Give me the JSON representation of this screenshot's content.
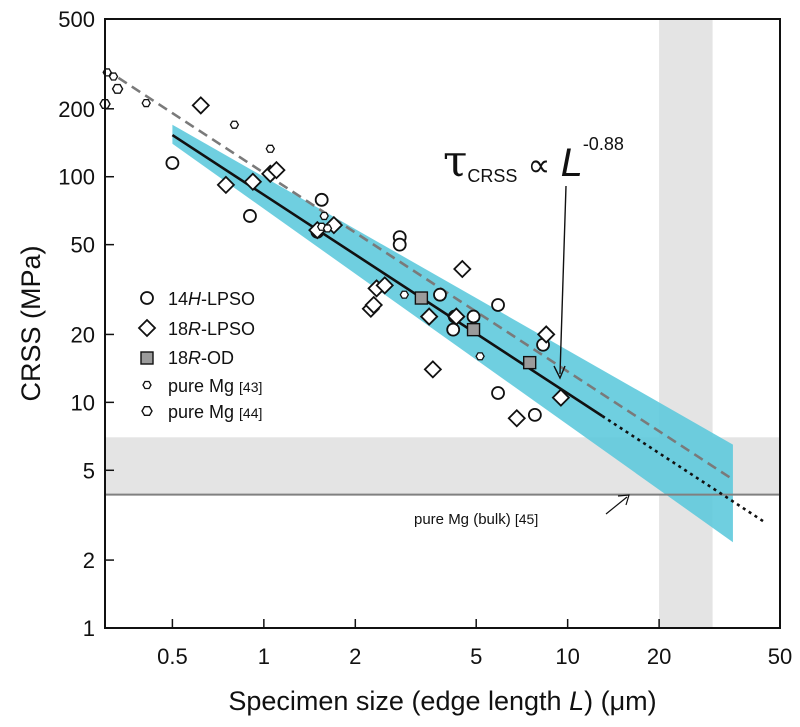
{
  "chart_data": {
    "type": "scatter",
    "title": "",
    "xlabel_parts": [
      "Specimen size (edge length ",
      "L",
      ") (μm)"
    ],
    "ylabel": "CRSS (MPa)",
    "xscale": "log",
    "yscale": "log",
    "xlim": [
      0.3,
      50
    ],
    "ylim": [
      1,
      500
    ],
    "x_ticks": [
      0.5,
      1,
      2,
      5,
      10,
      20,
      50
    ],
    "x_tick_labels": [
      "0.5",
      "1",
      "2",
      "5",
      "10",
      "20",
      "50"
    ],
    "y_ticks": [
      1,
      2,
      5,
      10,
      20,
      50,
      100,
      200,
      500
    ],
    "y_tick_labels": [
      "1",
      "2",
      "5",
      "10",
      "20",
      "50",
      "100",
      "200",
      "500"
    ],
    "grid": false,
    "legend_position": "left",
    "legend": [
      {
        "marker": "circle",
        "parts": [
          "14",
          "H",
          "-LPSO"
        ],
        "ref": ""
      },
      {
        "marker": "diamond",
        "parts": [
          "18",
          "R",
          "-LPSO"
        ],
        "ref": ""
      },
      {
        "marker": "square",
        "parts": [
          "18",
          "R",
          "-OD"
        ],
        "ref": ""
      },
      {
        "marker": "hexagon-small",
        "parts": [
          "pure Mg ",
          "",
          ""
        ],
        "ref": "[43]"
      },
      {
        "marker": "hexagon",
        "parts": [
          "pure Mg ",
          "",
          ""
        ],
        "ref": "[44]"
      }
    ],
    "series": [
      {
        "key": "14H-LPSO",
        "marker": "circle",
        "points": [
          [
            0.5,
            115
          ],
          [
            0.9,
            67
          ],
          [
            1.5,
            57
          ],
          [
            1.55,
            79
          ],
          [
            2.8,
            54
          ],
          [
            2.8,
            50
          ],
          [
            3.8,
            30
          ],
          [
            4.2,
            21
          ],
          [
            4.25,
            24
          ],
          [
            4.9,
            24
          ],
          [
            5.9,
            27
          ],
          [
            5.9,
            11
          ],
          [
            7.8,
            8.8
          ],
          [
            8.3,
            18
          ]
        ]
      },
      {
        "key": "18R-LPSO",
        "marker": "diamond",
        "points": [
          [
            0.62,
            207
          ],
          [
            0.75,
            92
          ],
          [
            0.92,
            95
          ],
          [
            1.05,
            103
          ],
          [
            1.1,
            107
          ],
          [
            1.5,
            58
          ],
          [
            1.7,
            61
          ],
          [
            2.25,
            26
          ],
          [
            2.3,
            27
          ],
          [
            2.35,
            32
          ],
          [
            2.5,
            33
          ],
          [
            3.5,
            24
          ],
          [
            3.6,
            14
          ],
          [
            4.3,
            24
          ],
          [
            4.5,
            39
          ],
          [
            6.8,
            8.5
          ],
          [
            8.5,
            20
          ],
          [
            9.5,
            10.5
          ]
        ]
      },
      {
        "key": "18R-OD",
        "marker": "square",
        "points": [
          [
            3.3,
            29
          ],
          [
            4.9,
            21
          ],
          [
            7.5,
            15
          ]
        ]
      },
      {
        "key": "pure Mg [43]",
        "marker": "hexagon-small",
        "points": [
          [
            0.305,
            290
          ],
          [
            0.32,
            278
          ],
          [
            0.41,
            212
          ],
          [
            0.8,
            170
          ],
          [
            1.05,
            133
          ],
          [
            1.55,
            60
          ],
          [
            1.58,
            67
          ],
          [
            1.62,
            59
          ],
          [
            2.9,
            30
          ],
          [
            5.15,
            16
          ]
        ]
      },
      {
        "key": "pure Mg [44]",
        "marker": "hexagon",
        "points": [
          [
            0.3,
            210
          ],
          [
            0.33,
            245
          ]
        ]
      }
    ],
    "fit": {
      "label_parts": [
        "τ",
        "CRSS",
        " ∝ ",
        "L",
        "-0.88"
      ],
      "exponent": -0.88,
      "solid": [
        0.5,
        13
      ],
      "solid_y0": 153,
      "dotted": [
        13,
        45
      ],
      "dashed": [
        0.3,
        35
      ],
      "dashed_y0": 300
    },
    "confidence_band": {
      "x": [
        0.5,
        35
      ],
      "upper": [
        170,
        6.5
      ],
      "lower": [
        140,
        2.4
      ],
      "color": "#5bc8dc"
    },
    "reference_line": {
      "y": 3.9,
      "label": "pure Mg (bulk) ",
      "ref": "[45]",
      "color": "#808080"
    },
    "shaded_regions": [
      {
        "axis": "x",
        "range": [
          20,
          30
        ],
        "color": "#e4e4e4"
      },
      {
        "axis": "y",
        "range": [
          3.9,
          7
        ],
        "color": "#e4e4e4"
      }
    ]
  }
}
